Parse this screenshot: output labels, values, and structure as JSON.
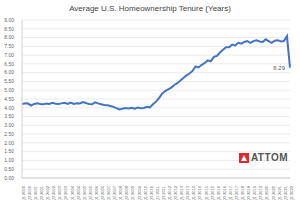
{
  "chart_data": {
    "type": "line",
    "title": "Average U.S. Homeownership Tenure (Years)",
    "logo": "ATTOM",
    "color": "#4472c4",
    "grid": true,
    "categories": [
      "Q1 2000",
      null,
      "Q3 2000",
      null,
      "Q1 2001",
      null,
      "Q3 2001",
      null,
      "Q1 2002",
      null,
      "Q3 2002",
      null,
      "Q1 2003",
      null,
      "Q3 2003",
      null,
      "Q1 2004",
      null,
      "Q3 2004",
      null,
      "Q1 2005",
      null,
      "Q3 2005",
      null,
      "Q1 2006",
      null,
      "Q3 2006",
      null,
      "Q1 2007",
      null,
      "Q3 2007",
      null,
      "Q1 2008",
      null,
      "Q3 2008",
      null,
      "Q1 2009",
      null,
      "Q3 2009",
      null,
      "Q1 2010",
      null,
      "Q3 2010",
      null,
      "Q1 2011",
      null,
      "Q3 2011",
      null,
      "Q1 2012",
      null,
      "Q3 2012",
      null,
      "Q1 2013",
      null,
      "Q3 2013",
      null,
      "Q1 2014",
      null,
      "Q3 2014",
      null,
      "Q1 2015",
      null,
      "Q3 2015",
      null,
      "Q1 2016",
      null,
      "Q3 2016",
      null,
      "Q1 2017",
      null,
      "Q3 2017",
      null,
      "Q1 2018",
      null,
      "Q3 2018",
      null,
      "Q1 2019",
      null,
      "Q3 2019",
      null,
      "Q1 2020",
      null,
      "Q3 2020",
      null,
      "Q1 2021",
      null,
      "Q3 2021",
      null,
      "Q1 2022"
    ],
    "values": [
      4.21,
      4.26,
      4.24,
      4.13,
      4.22,
      4.25,
      4.22,
      4.2,
      4.24,
      4.22,
      4.28,
      4.23,
      4.22,
      4.25,
      4.28,
      4.22,
      4.3,
      4.22,
      4.26,
      4.25,
      4.33,
      4.27,
      4.22,
      4.2,
      4.31,
      4.25,
      4.2,
      4.16,
      4.15,
      4.1,
      4.05,
      3.98,
      3.9,
      3.95,
      3.98,
      3.96,
      4.0,
      3.95,
      4.02,
      3.98,
      3.99,
      4.05,
      4.02,
      4.2,
      4.35,
      4.55,
      4.8,
      4.95,
      5.05,
      5.15,
      5.3,
      5.4,
      5.55,
      5.7,
      5.85,
      5.95,
      6.1,
      6.35,
      6.3,
      6.45,
      6.55,
      6.7,
      6.65,
      6.9,
      6.95,
      7.15,
      7.3,
      7.45,
      7.45,
      7.6,
      7.55,
      7.7,
      7.65,
      7.75,
      7.8,
      7.7,
      7.8,
      7.85,
      7.78,
      7.75,
      7.9,
      7.8,
      7.7,
      7.82,
      7.85,
      7.78,
      7.8,
      8.08,
      6.29
    ],
    "ylim": [
      0,
      9
    ],
    "yticks": [
      {
        "value": 0,
        "label": "0.00"
      },
      {
        "value": 0.5,
        "label": "0.50"
      },
      {
        "value": 1,
        "label": "1.00"
      },
      {
        "value": 1.5,
        "label": "1.50"
      },
      {
        "value": 2,
        "label": "2.00"
      },
      {
        "value": 2.5,
        "label": "2.50"
      },
      {
        "value": 3,
        "label": "3.00"
      },
      {
        "value": 3.5,
        "label": "3.50"
      },
      {
        "value": 4,
        "label": "4.00"
      },
      {
        "value": 4.5,
        "label": "4.50"
      },
      {
        "value": 5,
        "label": "5.00"
      },
      {
        "value": 5.5,
        "label": "5.50"
      },
      {
        "value": 6,
        "label": "6.00"
      },
      {
        "value": 6.5,
        "label": "6.50"
      },
      {
        "value": 7,
        "label": "7.00"
      },
      {
        "value": 7.5,
        "label": "7.50"
      },
      {
        "value": 8,
        "label": "8.00"
      },
      {
        "value": 8.5,
        "label": "8.50"
      },
      {
        "value": 9,
        "label": "9.00"
      }
    ],
    "annotations": [
      {
        "text": "6.29",
        "x": "Q1 2022",
        "y": 6.29
      }
    ]
  }
}
